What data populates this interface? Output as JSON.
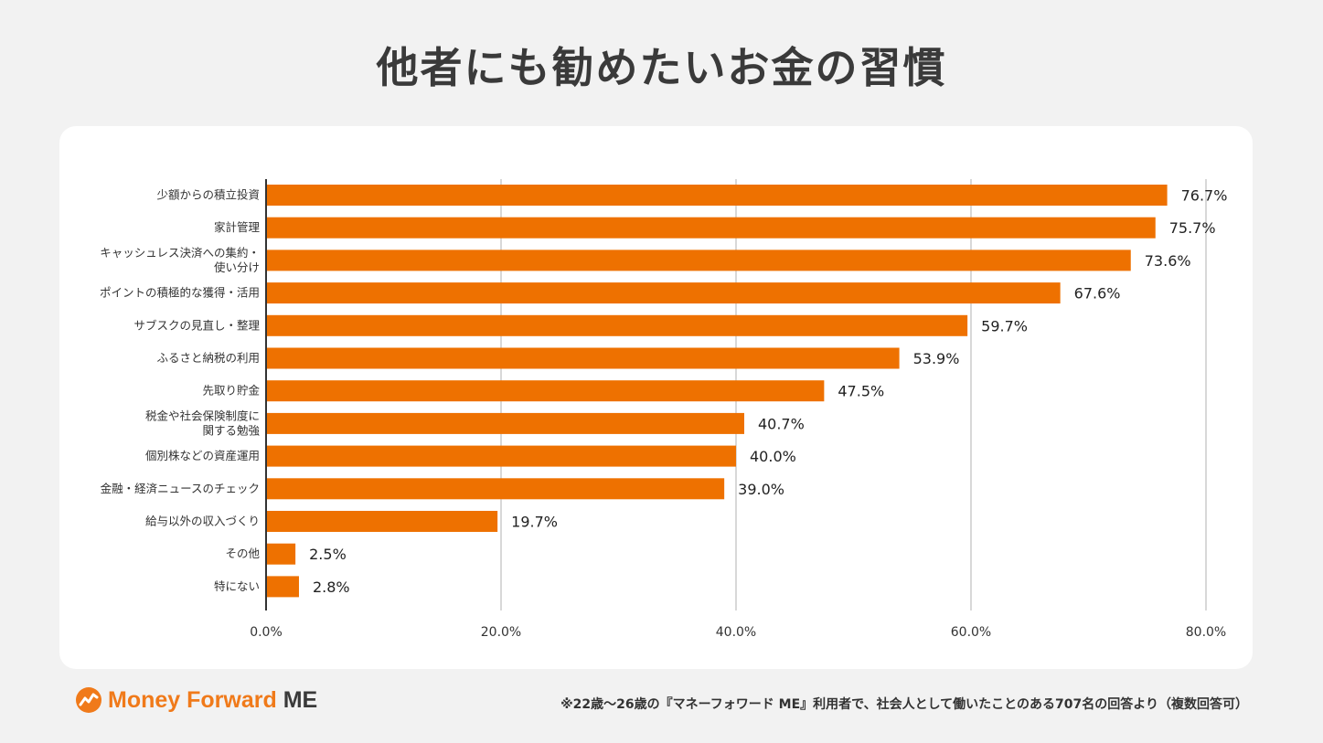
{
  "title": "他者にも勧めたいお金の習慣",
  "footer_note": "※22歳〜26歳の『マネーフォワード ME』利用者で、社会人として働いたことのある707名の回答より（複数回答可）",
  "logo": {
    "text": "Money Forward",
    "suffix": "ME"
  },
  "colors": {
    "bar": "#ee7100",
    "accent": "#f07a1a",
    "grid": "#cccccc"
  },
  "chart_data": {
    "type": "bar",
    "orientation": "horizontal",
    "categories": [
      [
        "少額からの積立投資"
      ],
      [
        "家計管理"
      ],
      [
        "キャッシュレス決済への集約・",
        "使い分け"
      ],
      [
        "ポイントの積極的な獲得・活用"
      ],
      [
        "サブスクの見直し・整理"
      ],
      [
        "ふるさと納税の利用"
      ],
      [
        "先取り貯金"
      ],
      [
        "税金や社会保険制度に",
        "関する勉強"
      ],
      [
        "個別株などの資産運用"
      ],
      [
        "金融・経済ニュースのチェック"
      ],
      [
        "給与以外の収入づくり"
      ],
      [
        "その他"
      ],
      [
        "特にない"
      ]
    ],
    "values": [
      76.7,
      75.7,
      73.6,
      67.6,
      59.7,
      53.9,
      47.5,
      40.7,
      40.0,
      39.0,
      19.7,
      2.5,
      2.8
    ],
    "value_labels": [
      "76.7%",
      "75.7%",
      "73.6%",
      "67.6%",
      "59.7%",
      "53.9%",
      "47.5%",
      "40.7%",
      "40.0%",
      "39.0%",
      "19.7%",
      "2.5%",
      "2.8%"
    ],
    "xlim": [
      0,
      80
    ],
    "xticks": [
      0,
      20,
      40,
      60,
      80
    ],
    "xtick_labels": [
      "0.0%",
      "20.0%",
      "40.0%",
      "60.0%",
      "80.0%"
    ],
    "grid": true
  }
}
